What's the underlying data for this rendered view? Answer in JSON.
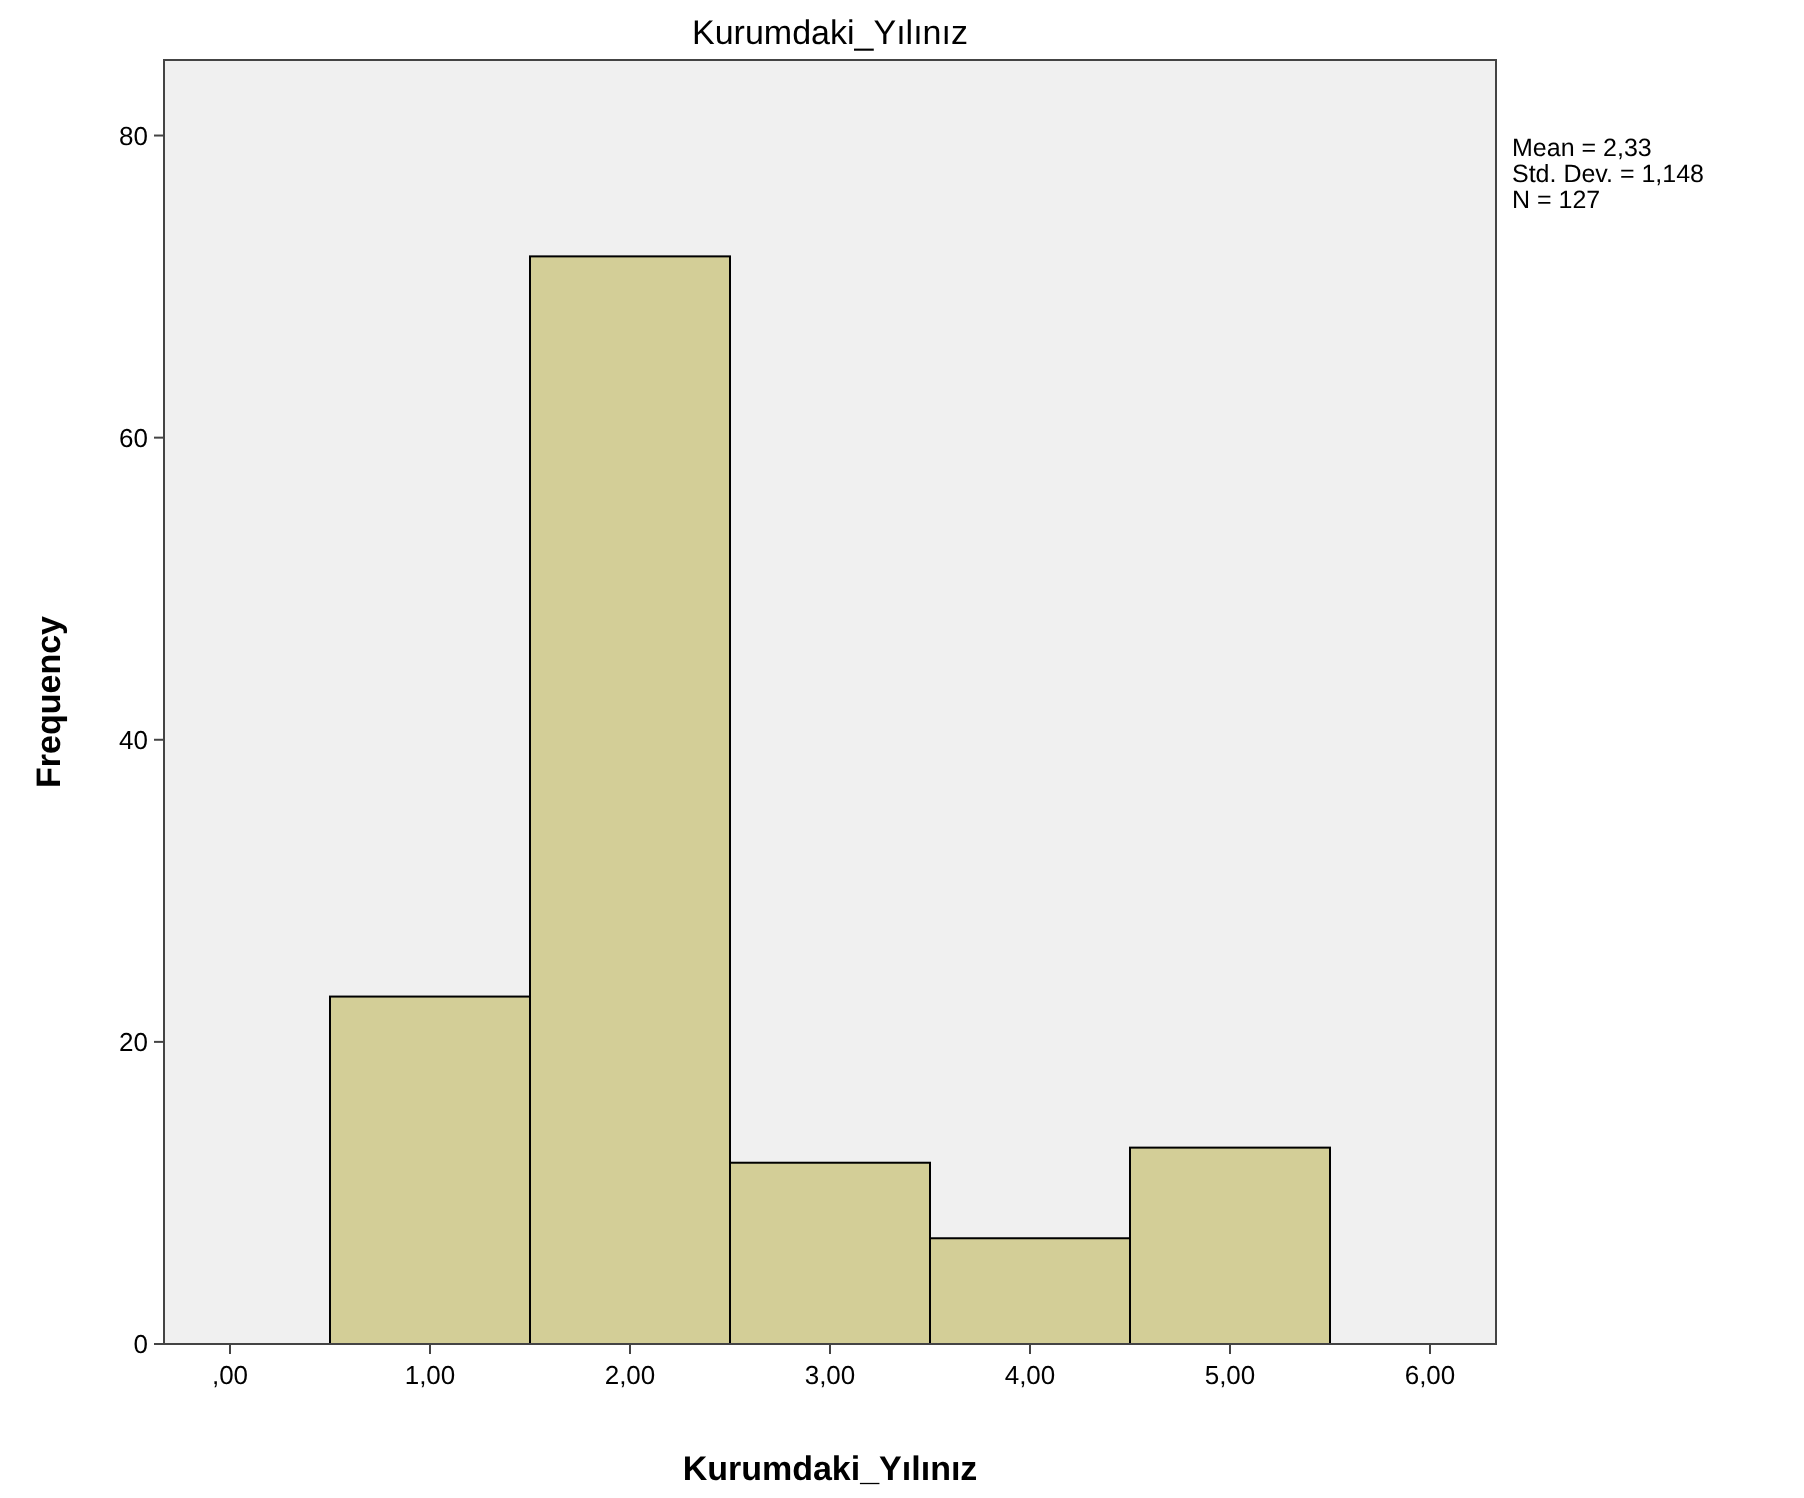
{
  "chart_data": {
    "type": "histogram",
    "title": "Kurumdaki_Yılınız",
    "xlabel": "Kurumdaki_Yılınız",
    "ylabel": "Frequency",
    "bins": [
      0.5,
      1.5,
      2.5,
      3.5,
      4.5,
      5.5
    ],
    "values": [
      23,
      72,
      12,
      7,
      13
    ],
    "color": "#d3ce97",
    "xlim": [
      -0.33,
      6.33
    ],
    "xticks": [
      {
        "value": 0,
        "label": ",00"
      },
      {
        "value": 1,
        "label": "1,00"
      },
      {
        "value": 2,
        "label": "2,00"
      },
      {
        "value": 3,
        "label": "3,00"
      },
      {
        "value": 4,
        "label": "4,00"
      },
      {
        "value": 5,
        "label": "5,00"
      },
      {
        "value": 6,
        "label": "6,00"
      }
    ],
    "ylim": [
      0,
      85
    ],
    "yticks": [
      0,
      20,
      40,
      60,
      80
    ],
    "grid": false,
    "annotations": [
      "Mean = 2,33",
      "Std. Dev. = 1,148",
      "N = 127"
    ]
  }
}
